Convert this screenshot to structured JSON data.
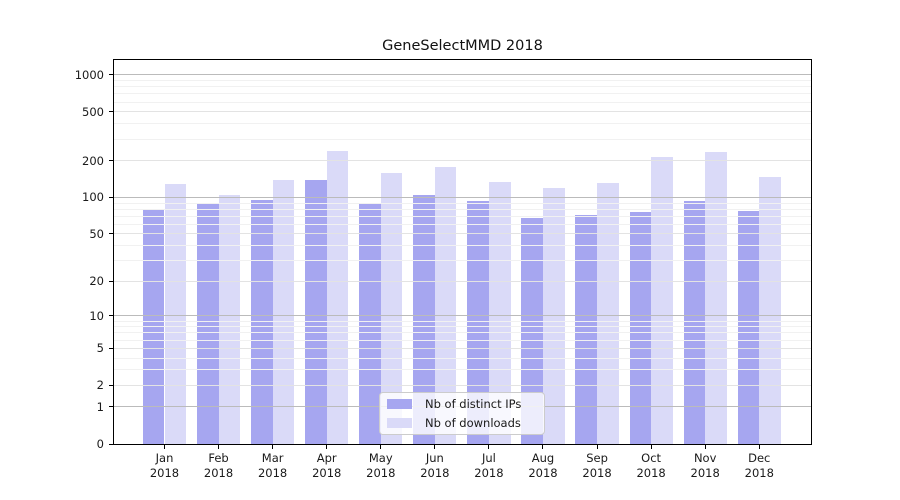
{
  "chart_data": {
    "type": "bar",
    "title": "GeneSelectMMD 2018",
    "year": "2018",
    "months": [
      "Jan",
      "Feb",
      "Mar",
      "Apr",
      "May",
      "Jun",
      "Jul",
      "Aug",
      "Sep",
      "Oct",
      "Nov",
      "Dec"
    ],
    "categories": [
      "Jan 2018",
      "Feb 2018",
      "Mar 2018",
      "Apr 2018",
      "May 2018",
      "Jun 2018",
      "Jul 2018",
      "Aug 2018",
      "Sep 2018",
      "Oct 2018",
      "Nov 2018",
      "Dec 2018"
    ],
    "series": [
      {
        "name": "Nb of distinct IPs",
        "color": "#a6a6f0",
        "values": [
          80,
          88,
          96,
          140,
          89,
          105,
          94,
          68,
          72,
          76,
          94,
          77
        ]
      },
      {
        "name": "Nb of downloads",
        "color": "#dadaf8",
        "values": [
          130,
          105,
          138,
          240,
          158,
          177,
          135,
          119,
          131,
          215,
          236,
          147
        ]
      }
    ],
    "yscale": "log1p",
    "yticks": [
      0,
      1,
      2,
      5,
      10,
      20,
      50,
      100,
      200,
      500,
      1000
    ],
    "ylim": [
      0,
      1320
    ],
    "xlabel": "",
    "ylabel": "",
    "grid": "on",
    "legend_position": "lower-center",
    "colors": {
      "major_grid": "#bbbbbb",
      "sub_grid": "#e3e3e3",
      "minor_grid": "#f1f1f1",
      "spine": "#000000",
      "text": "#1a1a1a"
    }
  }
}
